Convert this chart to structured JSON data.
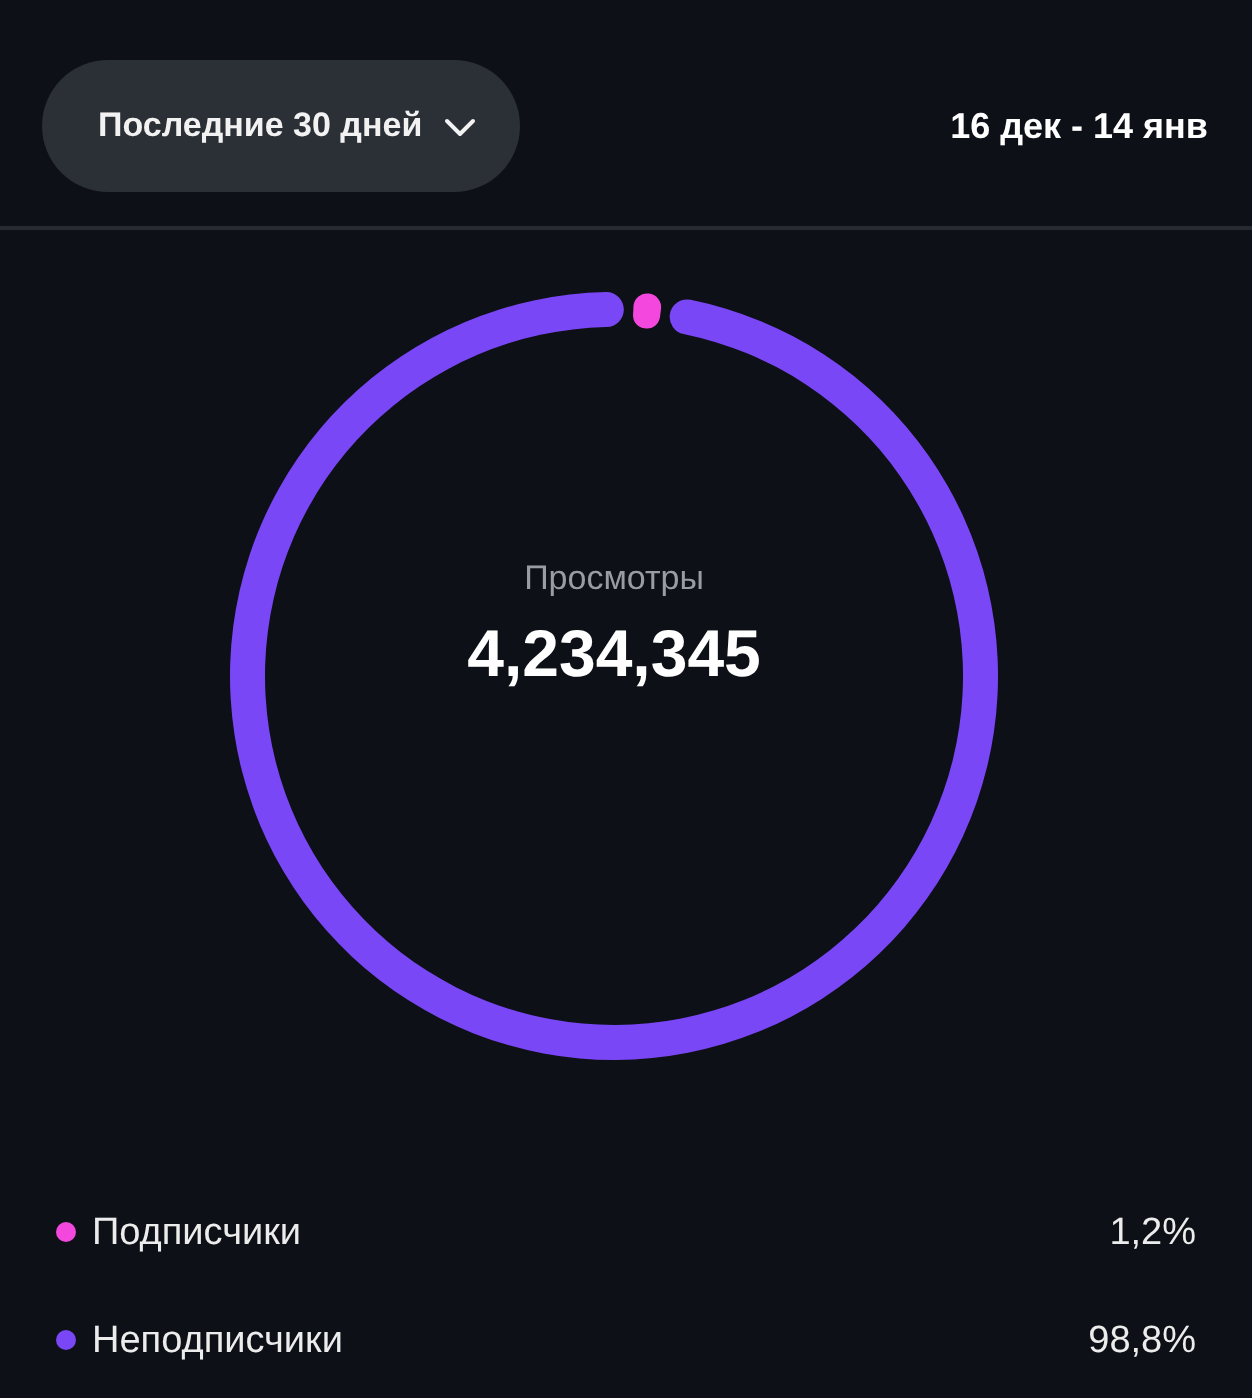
{
  "chart_data": {
    "type": "donut",
    "title": "Просмотры",
    "categories": [
      "Подписчики",
      "Неподписчики"
    ],
    "values": [
      1.2,
      98.8
    ],
    "colors": [
      "#f447de",
      "#7a47f6"
    ],
    "value_labels": [
      "1,2%",
      "98,8%"
    ],
    "legend": "bottom",
    "annotations": [
      "Последние 30 дней",
      "16 дек - 14 янв",
      "4,234,345"
    ]
  }
}
